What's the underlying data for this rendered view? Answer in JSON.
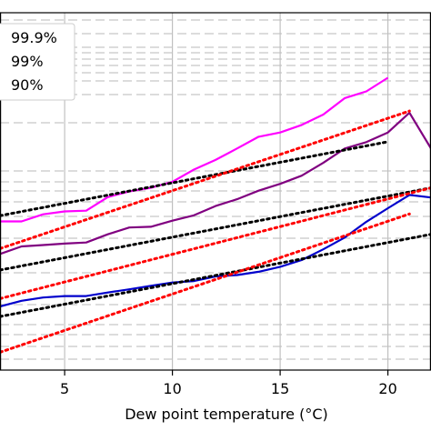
{
  "chart_data": {
    "type": "line",
    "title": "",
    "xlabel": "Dew point temperature (°C)",
    "ylabel": "",
    "xlim": [
      2,
      22
    ],
    "xticks": [
      5,
      10,
      15,
      20
    ],
    "x_tick_labels": [
      "5",
      "10",
      "15",
      "20"
    ],
    "ylim": [
      0,
      1
    ],
    "y_scale": "log",
    "grid": true,
    "legend": {
      "placement": "top-left",
      "entries": [
        "99.9%",
        "99%",
        "90%"
      ]
    },
    "series": [
      {
        "name": "99.9%",
        "color": "#ff00ff",
        "style": "solid",
        "x": [
          2,
          3,
          4,
          5,
          6,
          7,
          8,
          9,
          10,
          11,
          12,
          13,
          14,
          15,
          16,
          17,
          18,
          19,
          20
        ],
        "y": [
          0.416,
          0.416,
          0.436,
          0.444,
          0.446,
          0.484,
          0.5,
          0.51,
          0.527,
          0.561,
          0.588,
          0.62,
          0.653,
          0.665,
          0.686,
          0.715,
          0.761,
          0.78,
          0.818
        ]
      },
      {
        "name": "99%",
        "color": "#800080",
        "style": "solid",
        "x": [
          2,
          3,
          4,
          5,
          6,
          7,
          8,
          9,
          10,
          11,
          12,
          13,
          14,
          15,
          16,
          17,
          18,
          19,
          20,
          21,
          22
        ],
        "y": [
          0.325,
          0.346,
          0.35,
          0.354,
          0.357,
          0.38,
          0.399,
          0.401,
          0.418,
          0.433,
          0.459,
          0.478,
          0.502,
          0.521,
          0.544,
          0.58,
          0.62,
          0.638,
          0.665,
          0.72,
          0.62
        ]
      },
      {
        "name": "90%",
        "color": "#0000cc",
        "style": "solid",
        "x": [
          2,
          3,
          4,
          5,
          6,
          7,
          8,
          9,
          10,
          11,
          12,
          13,
          14,
          15,
          16,
          17,
          18,
          19,
          20,
          21,
          22
        ],
        "y": [
          0.178,
          0.194,
          0.203,
          0.207,
          0.207,
          0.217,
          0.226,
          0.236,
          0.245,
          0.249,
          0.262,
          0.266,
          0.275,
          0.289,
          0.308,
          0.338,
          0.371,
          0.415,
          0.453,
          0.49,
          0.483
        ]
      },
      {
        "name": "",
        "color": "#000000",
        "style": "dotted",
        "x": [
          2,
          20
        ],
        "y": [
          0.432,
          0.639
        ]
      },
      {
        "name": "",
        "color": "#000000",
        "style": "dotted",
        "x": [
          2,
          22
        ],
        "y": [
          0.28,
          0.51
        ]
      },
      {
        "name": "",
        "color": "#000000",
        "style": "dotted",
        "x": [
          2,
          22
        ],
        "y": [
          0.15,
          0.38
        ]
      },
      {
        "name": "",
        "color": "#ff0000",
        "style": "dotted",
        "x": [
          2,
          21
        ],
        "y": [
          0.34,
          0.725
        ]
      },
      {
        "name": "",
        "color": "#ff0000",
        "style": "dotted",
        "x": [
          2,
          22
        ],
        "y": [
          0.2,
          0.51
        ]
      },
      {
        "name": "",
        "color": "#ff0000",
        "style": "dotted",
        "x": [
          2,
          21
        ],
        "y": [
          0.05,
          0.437
        ]
      }
    ]
  }
}
